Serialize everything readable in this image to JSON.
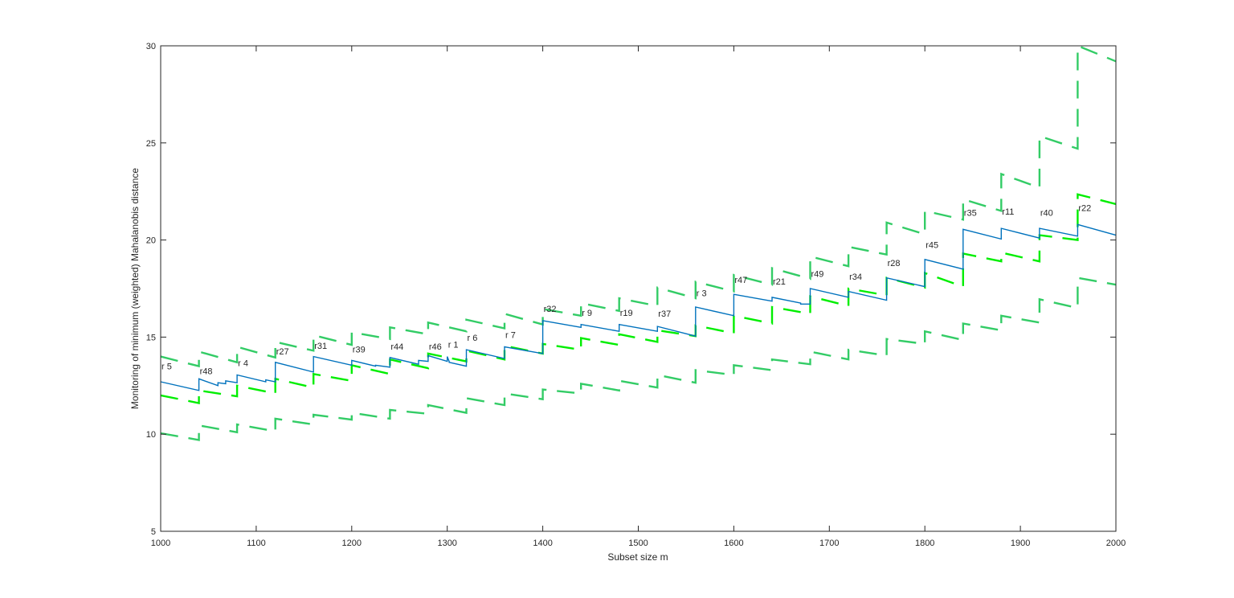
{
  "chart_data": {
    "type": "line",
    "title": "",
    "xlabel": "Subset size m",
    "ylabel": "Monitoring of minimum (weighted) Mahalanobis distance",
    "xlim": [
      1000,
      2000
    ],
    "ylim": [
      5,
      30
    ],
    "xticks": [
      1000,
      1100,
      1200,
      1300,
      1400,
      1500,
      1600,
      1700,
      1800,
      1900,
      2000
    ],
    "yticks": [
      5,
      10,
      15,
      20,
      25,
      30
    ],
    "grid": false,
    "colors": {
      "mdr": "#0072BD",
      "band_dark": "#33cc66",
      "band_bright": "#00ee00",
      "axis": "#262626"
    },
    "series": [
      {
        "role": "mdr",
        "style": "solid",
        "color": "#0072BD",
        "x": [
          1000,
          1040,
          1040,
          1060,
          1060,
          1068,
          1068,
          1080,
          1080,
          1110,
          1110,
          1120,
          1120,
          1160,
          1160,
          1200,
          1200,
          1225,
          1225,
          1240,
          1240,
          1270,
          1270,
          1280,
          1280,
          1300,
          1300,
          1302,
          1302,
          1320,
          1320,
          1360,
          1360,
          1400,
          1400,
          1440,
          1440,
          1480,
          1480,
          1520,
          1520,
          1560,
          1560,
          1600,
          1600,
          1640,
          1640,
          1670,
          1670,
          1680,
          1680,
          1720,
          1720,
          1760,
          1760,
          1800,
          1800,
          1840,
          1840,
          1880,
          1880,
          1920,
          1920,
          1960,
          1960,
          2000
        ],
        "y": [
          12.7,
          12.25,
          12.85,
          12.5,
          12.65,
          12.6,
          12.75,
          12.65,
          13.05,
          12.7,
          12.8,
          12.7,
          13.7,
          13.2,
          14.0,
          13.55,
          13.8,
          13.5,
          13.55,
          13.45,
          13.95,
          13.6,
          13.8,
          13.75,
          14.05,
          13.75,
          14.0,
          13.75,
          13.7,
          13.5,
          14.35,
          13.9,
          14.5,
          14.15,
          15.85,
          15.5,
          15.65,
          15.3,
          15.65,
          15.3,
          15.55,
          15.05,
          16.55,
          16.1,
          17.2,
          16.85,
          17.05,
          16.75,
          16.7,
          16.7,
          17.5,
          17.05,
          17.35,
          16.9,
          18.05,
          17.6,
          19.0,
          18.5,
          20.55,
          20.05,
          20.6,
          20.1,
          20.6,
          20.2,
          20.8,
          20.25
        ]
      },
      {
        "role": "envelope-upper-2",
        "style": "dashed",
        "color": "#33cc66",
        "x": [
          1000,
          1040,
          1040,
          1080,
          1080,
          1120,
          1120,
          1160,
          1160,
          1200,
          1200,
          1240,
          1240,
          1280,
          1280,
          1320,
          1320,
          1360,
          1360,
          1400,
          1400,
          1440,
          1440,
          1480,
          1480,
          1520,
          1520,
          1560,
          1560,
          1600,
          1600,
          1640,
          1640,
          1680,
          1680,
          1720,
          1720,
          1760,
          1760,
          1800,
          1800,
          1840,
          1840,
          1880,
          1880,
          1920,
          1920,
          1960,
          1960,
          2000
        ],
        "y": [
          14.0,
          13.5,
          14.25,
          13.7,
          14.5,
          13.95,
          14.75,
          14.3,
          15.1,
          14.6,
          15.25,
          14.9,
          15.5,
          15.15,
          15.75,
          15.3,
          15.9,
          15.45,
          16.2,
          15.65,
          16.45,
          16.1,
          16.75,
          16.35,
          17.0,
          16.6,
          17.55,
          17.0,
          17.85,
          17.35,
          18.2,
          17.7,
          18.55,
          18.0,
          19.15,
          18.65,
          19.65,
          19.25,
          20.9,
          20.3,
          21.5,
          21.05,
          22.1,
          21.5,
          23.4,
          22.7,
          25.35,
          24.7,
          30.0,
          29.2
        ]
      },
      {
        "role": "envelope-upper-1",
        "style": "dashed",
        "color": "#00ee00",
        "x": [
          1000,
          1040,
          1040,
          1080,
          1080,
          1120,
          1120,
          1160,
          1160,
          1200,
          1200,
          1240,
          1240,
          1280,
          1280,
          1320,
          1320,
          1360,
          1360,
          1400,
          1400,
          1440,
          1440,
          1480,
          1480,
          1520,
          1520,
          1560,
          1560,
          1600,
          1600,
          1640,
          1640,
          1680,
          1680,
          1720,
          1720,
          1760,
          1760,
          1800,
          1800,
          1840,
          1840,
          1880,
          1880,
          1920,
          1920,
          1960,
          1960,
          2000
        ],
        "y": [
          12.0,
          11.6,
          12.25,
          11.95,
          12.5,
          12.1,
          12.85,
          12.4,
          13.1,
          12.75,
          13.55,
          13.1,
          13.85,
          13.4,
          14.15,
          13.75,
          14.3,
          13.85,
          14.55,
          14.15,
          14.65,
          14.35,
          14.95,
          14.6,
          15.15,
          14.75,
          15.35,
          15.05,
          15.6,
          15.2,
          16.1,
          15.7,
          16.55,
          16.2,
          17.1,
          16.6,
          17.5,
          17.15,
          18.05,
          17.55,
          18.3,
          17.6,
          19.3,
          18.9,
          19.35,
          18.9,
          20.25,
          20.0,
          22.35,
          21.85
        ]
      },
      {
        "role": "envelope-lower",
        "style": "dashed",
        "color": "#33cc66",
        "x": [
          1000,
          1040,
          1040,
          1080,
          1080,
          1120,
          1120,
          1160,
          1160,
          1200,
          1200,
          1240,
          1240,
          1280,
          1280,
          1320,
          1320,
          1360,
          1360,
          1400,
          1400,
          1440,
          1440,
          1480,
          1480,
          1520,
          1520,
          1560,
          1560,
          1600,
          1600,
          1640,
          1640,
          1680,
          1680,
          1720,
          1720,
          1760,
          1760,
          1800,
          1800,
          1840,
          1840,
          1880,
          1880,
          1920,
          1920,
          1960,
          1960,
          2000
        ],
        "y": [
          10.05,
          9.7,
          10.45,
          10.1,
          10.5,
          10.15,
          10.8,
          10.5,
          11.0,
          10.75,
          11.1,
          10.8,
          11.25,
          11.05,
          11.5,
          11.1,
          11.85,
          11.5,
          12.1,
          11.8,
          12.3,
          12.1,
          12.6,
          12.25,
          12.75,
          12.4,
          13.05,
          12.65,
          13.3,
          13.05,
          13.55,
          13.3,
          13.85,
          13.6,
          14.25,
          13.85,
          14.35,
          14.05,
          14.9,
          14.65,
          15.3,
          14.85,
          15.7,
          15.35,
          16.1,
          15.75,
          16.95,
          16.5,
          18.05,
          17.7
        ]
      }
    ],
    "annotations": [
      {
        "text": "r 5",
        "x": 1000,
        "y": 13.35
      },
      {
        "text": "r48",
        "x": 1040,
        "y": 13.1
      },
      {
        "text": "r 4",
        "x": 1080,
        "y": 13.5
      },
      {
        "text": "r27",
        "x": 1120,
        "y": 14.1
      },
      {
        "text": "r31",
        "x": 1160,
        "y": 14.4
      },
      {
        "text": "r39",
        "x": 1200,
        "y": 14.2
      },
      {
        "text": "r44",
        "x": 1240,
        "y": 14.35
      },
      {
        "text": "r46",
        "x": 1280,
        "y": 14.35
      },
      {
        "text": "r 1",
        "x": 1300,
        "y": 14.45
      },
      {
        "text": "r 6",
        "x": 1320,
        "y": 14.8
      },
      {
        "text": "r 7",
        "x": 1360,
        "y": 14.95
      },
      {
        "text": "r32",
        "x": 1400,
        "y": 16.3
      },
      {
        "text": "r 9",
        "x": 1440,
        "y": 16.1
      },
      {
        "text": "r19",
        "x": 1480,
        "y": 16.1
      },
      {
        "text": "r37",
        "x": 1520,
        "y": 16.05
      },
      {
        "text": "r 3",
        "x": 1560,
        "y": 17.1
      },
      {
        "text": "r47",
        "x": 1600,
        "y": 17.8
      },
      {
        "text": "r21",
        "x": 1640,
        "y": 17.7
      },
      {
        "text": "r49",
        "x": 1680,
        "y": 18.1
      },
      {
        "text": "r34",
        "x": 1720,
        "y": 17.95
      },
      {
        "text": "r28",
        "x": 1760,
        "y": 18.65
      },
      {
        "text": "r45",
        "x": 1800,
        "y": 19.6
      },
      {
        "text": "r35",
        "x": 1840,
        "y": 21.25
      },
      {
        "text": "r11",
        "x": 1880,
        "y": 21.3
      },
      {
        "text": "r40",
        "x": 1920,
        "y": 21.25
      },
      {
        "text": "r22",
        "x": 1960,
        "y": 21.5
      }
    ]
  }
}
